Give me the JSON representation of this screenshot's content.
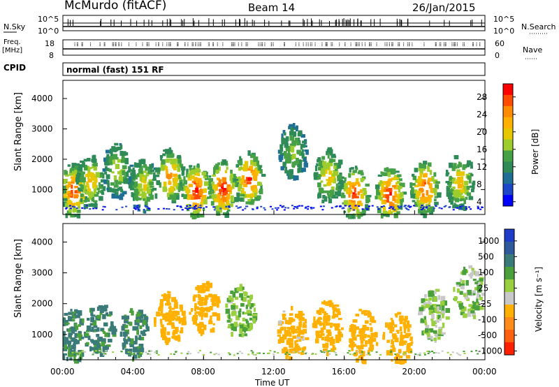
{
  "header": {
    "station": "McMurdo (fitACF)",
    "beam": "Beam 14",
    "date": "26/Jan/2015",
    "cpid_label": "CPID",
    "cpid_value": "normal (fast) 151 RF"
  },
  "status_panels": {
    "nsky_label": "N.Sky",
    "nsearch_label": "N.Search",
    "freq_label": "Freq.",
    "freq_unit": "[MHz]",
    "nave_label": "Nave",
    "left_ticks_top": [
      "10^5",
      "10^0"
    ],
    "right_ticks_top": [
      "10^5",
      "10^0"
    ],
    "left_ticks_freq": [
      "18",
      "8"
    ],
    "right_ticks_nave": [
      "60",
      "0"
    ]
  },
  "axes": {
    "ylabel": "Slant Range [km]",
    "xlabel": "Time UT",
    "yticks": [
      "1000",
      "2000",
      "3000",
      "4000"
    ],
    "xticks": [
      "00:00",
      "04:00",
      "08:00",
      "12:00",
      "16:00",
      "20:00",
      "00:00"
    ]
  },
  "power_scale": {
    "title": "Power [dB]",
    "ticks": [
      "28",
      "24",
      "20",
      "16",
      "12",
      "8",
      "4"
    ],
    "colors": [
      "#ff0000",
      "#ff4a00",
      "#ff8c00",
      "#ffb000",
      "#e6c800",
      "#9ccd2c",
      "#46a046",
      "#2e8b57",
      "#1e6e96",
      "#1e46c8",
      "#0000ff"
    ]
  },
  "velocity_scale": {
    "title": "Velocity [m s⁻¹]",
    "ticks": [
      "1000",
      "500",
      "100",
      "25",
      "-25",
      "-100",
      "-500",
      "-1000"
    ],
    "colors": [
      "#1e3cc8",
      "#2e5a9c",
      "#3a7a78",
      "#4aa03a",
      "#9ad040",
      "#c8c8c8",
      "#ffb000",
      "#ff8c1a",
      "#ff6010",
      "#ff2000"
    ]
  },
  "chart_data": [
    {
      "type": "heatmap",
      "title": "Power [dB]",
      "xlabel": "Time UT",
      "ylabel": "Slant Range [km]",
      "xlim": [
        0,
        24
      ],
      "ylim": [
        180,
        4600
      ],
      "colorbar_range": [
        0,
        30
      ],
      "note_series": [
        {
          "name": "echo_bands",
          "x_hours": [
            0.5,
            1.5,
            3,
            4.5,
            6,
            7.5,
            9,
            10.5,
            13,
            15,
            16.5,
            18.5,
            20.5,
            22.5
          ],
          "center_range_km": [
            1000,
            1300,
            1700,
            1200,
            1500,
            1000,
            1100,
            1400,
            2300,
            1500,
            900,
            900,
            1100,
            1300
          ],
          "peak_power_db": [
            26,
            18,
            14,
            16,
            22,
            28,
            28,
            26,
            12,
            18,
            26,
            28,
            26,
            18
          ]
        }
      ]
    },
    {
      "type": "heatmap",
      "title": "Velocity [m s⁻¹]",
      "xlabel": "Time UT",
      "ylabel": "Slant Range [km]",
      "xlim": [
        0,
        24
      ],
      "ylim": [
        180,
        4600
      ],
      "colorbar_range": [
        -1000,
        1000
      ],
      "note_series": [
        {
          "name": "echo_bands",
          "x_hours": [
            0.5,
            2,
            4,
            6,
            8,
            10,
            13,
            15,
            17,
            19,
            21,
            23
          ],
          "center_range_km": [
            1000,
            1200,
            1100,
            1600,
            1900,
            1800,
            1100,
            1300,
            1000,
            900,
            1700,
            2400
          ],
          "velocity_ms": [
            120,
            130,
            120,
            -300,
            -200,
            30,
            -150,
            -300,
            -250,
            -200,
            0,
            0
          ]
        }
      ]
    }
  ]
}
